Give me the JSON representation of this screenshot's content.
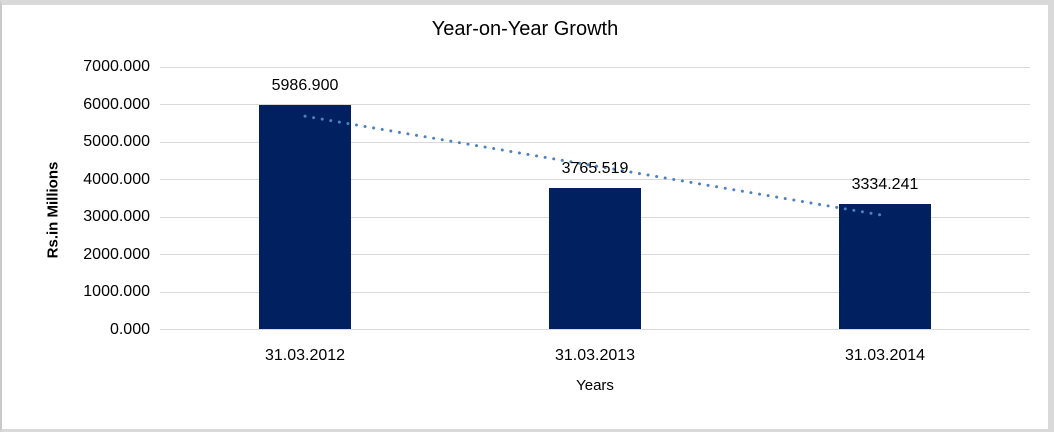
{
  "chart_data": {
    "type": "bar",
    "title": "Year-on-Year Growth",
    "xlabel": "Years",
    "ylabel": "Rs.in Millions",
    "categories": [
      "31.03.2012",
      "31.03.2013",
      "31.03.2014"
    ],
    "values": [
      5986.9,
      3765.519,
      3334.241
    ],
    "data_labels": [
      "5986.900",
      "3765.519",
      "3334.241"
    ],
    "ylim": [
      0,
      7000
    ],
    "ytick_step": 1000,
    "ytick_labels": [
      "0.000",
      "1000.000",
      "2000.000",
      "3000.000",
      "4000.000",
      "5000.000",
      "6000.000",
      "7000.000"
    ],
    "grid": true,
    "legend": "none",
    "trendline": {
      "type": "linear",
      "style": "dotted",
      "color": "#4F81BD"
    },
    "colors": {
      "bar": "#002060",
      "gridline": "#D9D9D9",
      "text": "#000000",
      "frame_border": "#D9D9D9"
    }
  }
}
